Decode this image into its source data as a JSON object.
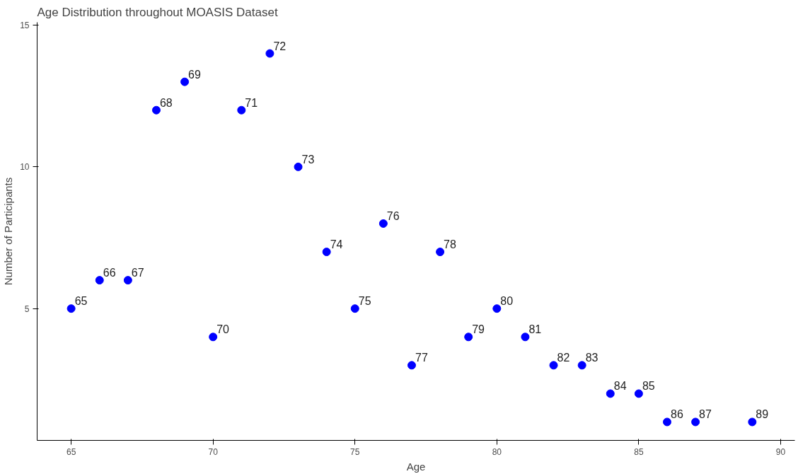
{
  "chart_data": {
    "type": "scatter",
    "title": "Age Distribution throughout MOASIS Dataset",
    "xlabel": "Age",
    "ylabel": "Number of Participants",
    "x": [
      65,
      66,
      67,
      68,
      69,
      70,
      71,
      72,
      73,
      74,
      75,
      76,
      77,
      78,
      79,
      80,
      81,
      82,
      83,
      84,
      85,
      86,
      87,
      89
    ],
    "series": [
      {
        "color": "#0000ff",
        "values": [
          5,
          6,
          6,
          12,
          13,
          4,
          12,
          14,
          10,
          7,
          5,
          8,
          3,
          7,
          4,
          5,
          4,
          3,
          3,
          2,
          2,
          1,
          1,
          1
        ]
      }
    ],
    "annotations": [
      {
        "text": "65",
        "x": 65,
        "y": 5
      },
      {
        "text": "66",
        "x": 66,
        "y": 6
      },
      {
        "text": "67",
        "x": 67,
        "y": 6
      },
      {
        "text": "68",
        "x": 68,
        "y": 12
      },
      {
        "text": "69",
        "x": 69,
        "y": 13
      },
      {
        "text": "70",
        "x": 70,
        "y": 4
      },
      {
        "text": "71",
        "x": 71,
        "y": 12
      },
      {
        "text": "72",
        "x": 72,
        "y": 14
      },
      {
        "text": "73",
        "x": 73,
        "y": 10
      },
      {
        "text": "74",
        "x": 74,
        "y": 7
      },
      {
        "text": "75",
        "x": 75,
        "y": 5
      },
      {
        "text": "76",
        "x": 76,
        "y": 8
      },
      {
        "text": "77",
        "x": 77,
        "y": 3
      },
      {
        "text": "78",
        "x": 78,
        "y": 7
      },
      {
        "text": "79",
        "x": 79,
        "y": 4
      },
      {
        "text": "80",
        "x": 80,
        "y": 5
      },
      {
        "text": "81",
        "x": 81,
        "y": 4
      },
      {
        "text": "82",
        "x": 82,
        "y": 3
      },
      {
        "text": "83",
        "x": 83,
        "y": 3
      },
      {
        "text": "84",
        "x": 84,
        "y": 2
      },
      {
        "text": "85",
        "x": 85,
        "y": 2
      },
      {
        "text": "86",
        "x": 86,
        "y": 1
      },
      {
        "text": "87",
        "x": 87,
        "y": 1
      },
      {
        "text": "89",
        "x": 89,
        "y": 1
      }
    ],
    "xlim": [
      63.8,
      90.5
    ],
    "ylim": [
      0.35,
      15.1
    ],
    "xticks": [
      65,
      70,
      75,
      80,
      85,
      90
    ],
    "yticks": [
      5,
      10,
      15
    ],
    "grid": false,
    "marker": "circle"
  }
}
